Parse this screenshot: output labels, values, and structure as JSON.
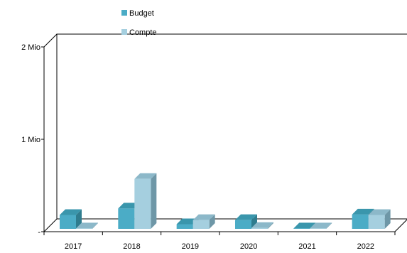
{
  "chart_data": {
    "type": "bar",
    "categories": [
      "2017",
      "2018",
      "2019",
      "2020",
      "2021",
      "2022"
    ],
    "series": [
      {
        "name": "Budget",
        "values": [
          150000,
          220000,
          50000,
          95000,
          5000,
          155000
        ],
        "color": "#4BACC6",
        "side_color": "#2F7C8E",
        "top_color": "#3A96AC"
      },
      {
        "name": "Compte",
        "values": [
          5000,
          540000,
          95000,
          10000,
          5000,
          150000
        ],
        "color": "#A5CFDF",
        "side_color": "#6E97A7",
        "top_color": "#8CB8C9"
      }
    ],
    "y_ticks": [
      {
        "value": 0,
        "label": "-"
      },
      {
        "value": 1000000,
        "label": "1 Mio"
      },
      {
        "value": 2000000,
        "label": "2 Mio"
      }
    ],
    "ylim": [
      0,
      2000000
    ],
    "grid": false,
    "legend_position": "top-center"
  }
}
